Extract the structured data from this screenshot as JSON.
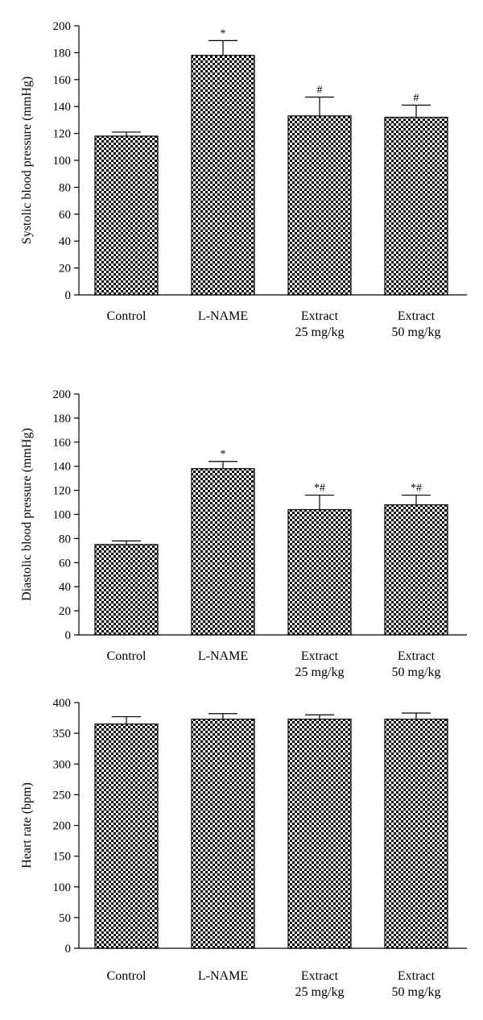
{
  "chart_data": [
    {
      "type": "bar",
      "categories": [
        [
          "Control"
        ],
        [
          "L-NAME"
        ],
        [
          "Extract",
          "25 mg/kg"
        ],
        [
          "Extract",
          "50 mg/kg"
        ]
      ],
      "values": [
        118,
        178,
        133,
        132
      ],
      "errors": [
        3,
        11,
        14,
        9
      ],
      "annotations": [
        "",
        "*",
        "#",
        "#"
      ],
      "ylabel": "Systolic blood pressure (mmHg)",
      "ylim": [
        0,
        200
      ],
      "yticks": [
        0,
        20,
        40,
        60,
        80,
        100,
        120,
        140,
        160,
        180,
        200
      ],
      "bar_fill": "checkerboard"
    },
    {
      "type": "bar",
      "categories": [
        [
          "Control"
        ],
        [
          "L-NAME"
        ],
        [
          "Extract",
          "25 mg/kg"
        ],
        [
          "Extract",
          "50 mg/kg"
        ]
      ],
      "values": [
        75,
        138,
        104,
        108
      ],
      "errors": [
        3,
        6,
        12,
        8
      ],
      "annotations": [
        "",
        "*",
        "*#",
        "*#"
      ],
      "ylabel": "Diastolic blood pressure (mmHg)",
      "ylim": [
        0,
        200
      ],
      "yticks": [
        0,
        20,
        40,
        60,
        80,
        100,
        120,
        140,
        160,
        180,
        200
      ],
      "bar_fill": "checkerboard"
    },
    {
      "type": "bar",
      "categories": [
        [
          "Control"
        ],
        [
          "L-NAME"
        ],
        [
          "Extract",
          "25 mg/kg"
        ],
        [
          "Extract",
          "50 mg/kg"
        ]
      ],
      "values": [
        365,
        373,
        373,
        373
      ],
      "errors": [
        12,
        9,
        7,
        10
      ],
      "annotations": [
        "",
        "",
        "",
        ""
      ],
      "ylabel": "Heart rate (bpm)",
      "ylim": [
        0,
        400
      ],
      "yticks": [
        0,
        50,
        100,
        150,
        200,
        250,
        300,
        350,
        400
      ],
      "bar_fill": "checkerboard"
    }
  ]
}
